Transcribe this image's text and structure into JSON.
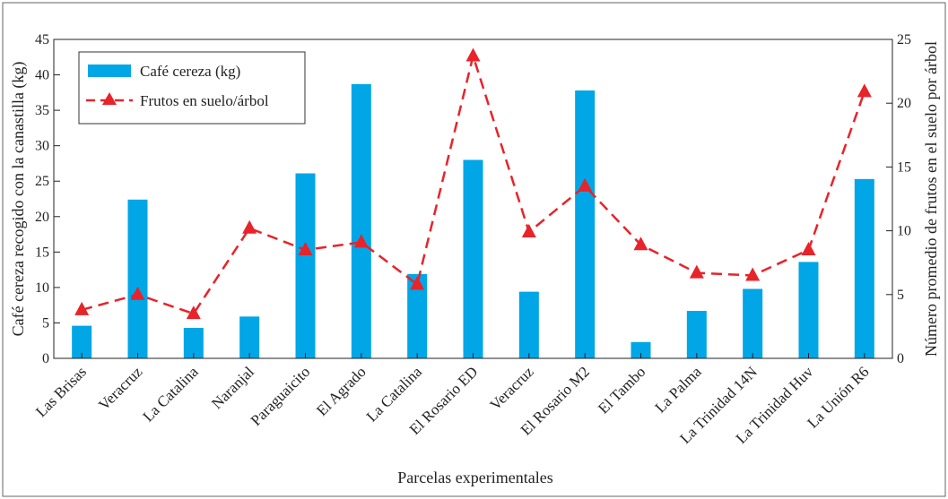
{
  "chart_data": {
    "type": "bar",
    "categories": [
      "Las Brisas",
      "Veracruz",
      "La Catalina",
      "Naranjal",
      "Paraguaicito",
      "El Agrado",
      "La Catalina",
      "El Rosario ED",
      "Veracruz",
      "El Rosario M2",
      "El Tambo",
      "La Palma",
      "La Trinidad 14N",
      "La Trinidad Huv",
      "La Unión R6"
    ],
    "xlabel": "Parcelas experimentales",
    "ylabel": "Café cereza recogido con la canastilla (kg)",
    "y2label": "Número promedio de frutos en el suelo por árbol",
    "ylim": [
      0,
      45
    ],
    "y2lim": [
      0,
      25
    ],
    "yticks": [
      0,
      5,
      10,
      15,
      20,
      25,
      30,
      35,
      40,
      45
    ],
    "y2ticks": [
      0,
      5,
      10,
      15,
      20,
      25
    ],
    "grid": false,
    "legend_position": "top-left",
    "series": [
      {
        "name": "Café cereza (kg)",
        "type": "bar",
        "axis": "left",
        "color": "#00a6e6",
        "values": [
          4.6,
          22.4,
          4.3,
          5.9,
          26.1,
          38.7,
          11.9,
          28.0,
          9.4,
          37.8,
          2.3,
          6.7,
          9.8,
          13.6,
          25.3
        ]
      },
      {
        "name": "Frutos en suelo/árbol",
        "type": "line",
        "axis": "right",
        "color": "#e8232a",
        "line_style": "dashed",
        "marker": "triangle",
        "values": [
          3.8,
          5.0,
          3.5,
          10.2,
          8.5,
          9.1,
          5.8,
          23.7,
          9.9,
          13.5,
          8.9,
          6.7,
          6.5,
          8.5,
          20.9
        ]
      }
    ]
  }
}
